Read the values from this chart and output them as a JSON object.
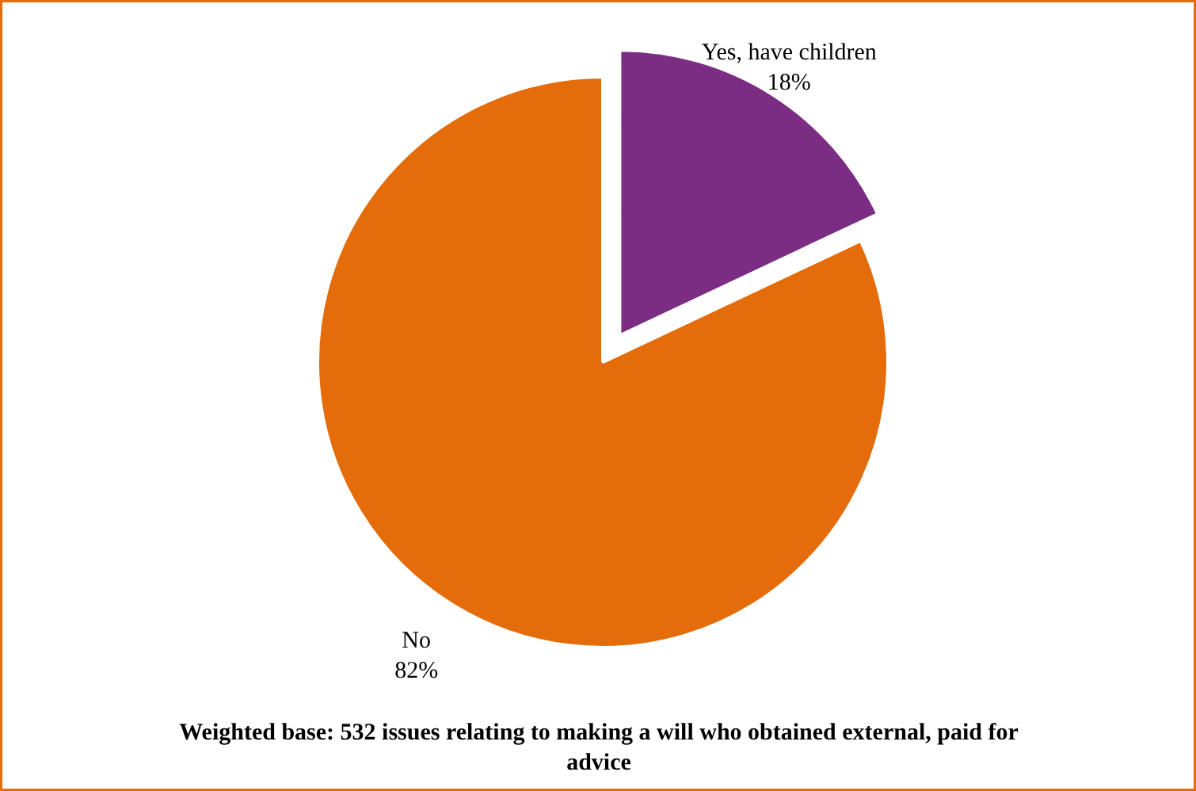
{
  "chart_data": {
    "type": "pie",
    "categories": [
      "Yes, have children",
      "No"
    ],
    "values": [
      18,
      82
    ],
    "colors": [
      "#7b2c83",
      "#e46c0a"
    ],
    "value_labels": [
      "18%",
      "82%"
    ],
    "annotations": [
      "Weighted base: 532 issues relating to making a will who obtained external, paid for advice"
    ]
  }
}
